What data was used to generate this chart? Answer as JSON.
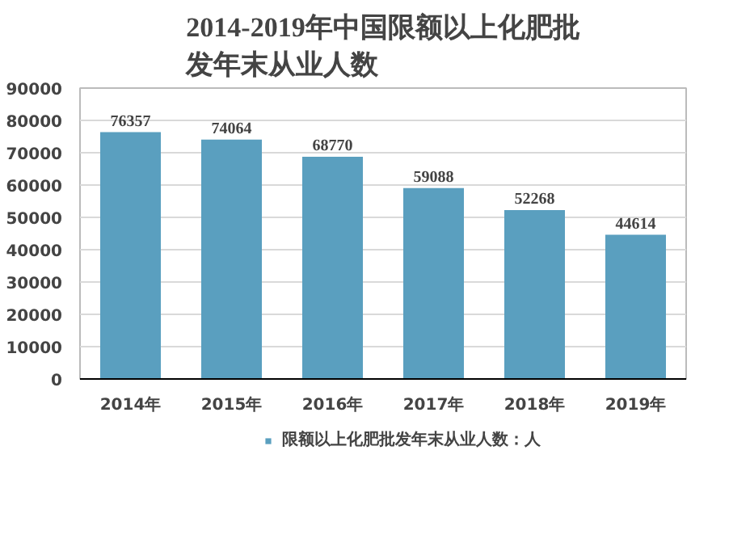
{
  "chart_data": {
    "type": "bar",
    "title": "2014-2019年中国限额以上化肥批发年末从业人数",
    "categories": [
      "2014年",
      "2015年",
      "2016年",
      "2017年",
      "2018年",
      "2019年"
    ],
    "series": [
      {
        "name": "限额以上化肥批发年末从业人数：人",
        "color": "#5a9fbf",
        "values": [
          76357,
          74064,
          68770,
          59088,
          52268,
          44614
        ]
      }
    ],
    "ylim": [
      0,
      90000
    ],
    "yticks": [
      0,
      10000,
      20000,
      30000,
      40000,
      50000,
      60000,
      70000,
      80000,
      90000
    ],
    "grid": "y",
    "legend": "bottom",
    "data_labels": true
  }
}
